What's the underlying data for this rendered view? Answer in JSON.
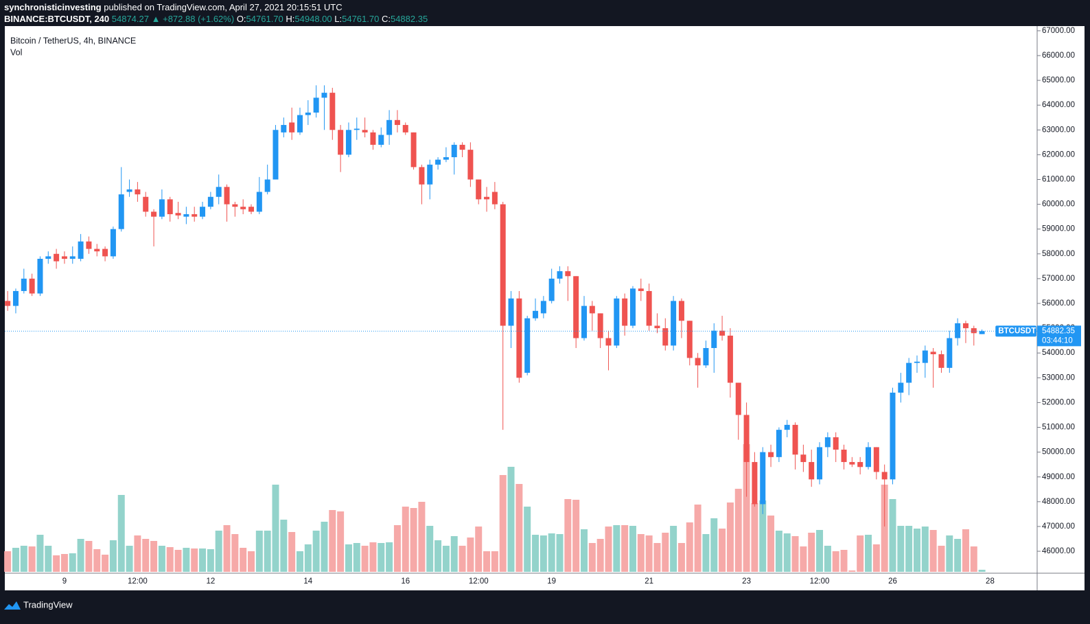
{
  "header": {
    "author": "synchronisticinvesting",
    "published": "published on TradingView.com, April 27, 2021 20:15:51 UTC",
    "symbol": "BINANCE:BTCUSDT, 240",
    "price": "54874.27",
    "change": "▲ +872.88 (+1.62%)",
    "o_label": "O:",
    "o": "54761.70",
    "h_label": "H:",
    "h": "54948.00",
    "l_label": "L:",
    "l": "54761.70",
    "c_label": "C:",
    "c": "54882.35"
  },
  "chart_data": {
    "type": "candlestick",
    "title": "Bitcoin / TetherUS, 4h, BINANCE",
    "volume_label": "Vol",
    "categories": [
      null,
      null,
      null,
      null,
      null,
      null,
      null,
      "9",
      null,
      null,
      null,
      null,
      null,
      null,
      null,
      null,
      "12:00",
      null,
      null,
      null,
      null,
      null,
      null,
      null,
      null,
      "12",
      null,
      null,
      null,
      null,
      null,
      null,
      null,
      null,
      null,
      null,
      null,
      "14",
      null,
      null,
      null,
      null,
      null,
      null,
      null,
      null,
      null,
      null,
      null,
      "16",
      null,
      null,
      null,
      null,
      null,
      null,
      null,
      null,
      "12:00",
      null,
      null,
      null,
      null,
      null,
      null,
      null,
      null,
      "19",
      null,
      null,
      null,
      null,
      null,
      null,
      null,
      null,
      null,
      null,
      null,
      "21",
      null,
      null,
      null,
      null,
      null,
      null,
      null,
      null,
      null,
      null,
      null,
      "23",
      null,
      null,
      null,
      null,
      null,
      null,
      null,
      null,
      "12:00",
      null,
      null,
      null,
      null,
      null,
      null,
      null,
      null,
      "26",
      null,
      null,
      null,
      null,
      null,
      null,
      null,
      null,
      null,
      null,
      null,
      "28"
    ],
    "open": [
      56100,
      55900,
      56500,
      57000,
      56400,
      57800,
      58000,
      57900,
      57800,
      57800,
      58500,
      58200,
      58200,
      57900,
      59000,
      60500,
      60600,
      60300,
      59700,
      59500,
      60200,
      59650,
      59500,
      59600,
      59500,
      59900,
      60300,
      60700,
      60000,
      59900,
      59900,
      59700,
      60500,
      61000,
      62900,
      63300,
      62900,
      63600,
      63700,
      64300,
      64500,
      63000,
      62000,
      63000,
      63000,
      62900,
      62400,
      62800,
      63400,
      63200,
      62900,
      61500,
      60800,
      61600,
      61800,
      61900,
      62400,
      62200,
      61000,
      60300,
      60500,
      60000,
      55100,
      56200,
      53200,
      55400,
      55600,
      56100,
      57000,
      57300,
      57100,
      54600,
      55900,
      55600,
      54600,
      54300,
      56200,
      55100,
      56600,
      56500,
      55100,
      55000,
      54300,
      56100,
      55300,
      53800,
      53500,
      54200,
      54900,
      54700,
      52800,
      51500,
      49600,
      47900,
      50000,
      49800,
      50900,
      51100,
      49900,
      49600,
      48900,
      50200,
      50600,
      50100,
      49600,
      49600,
      49400,
      50200,
      49200,
      48900,
      52400,
      52800,
      53600,
      53600,
      54050,
      53950,
      53400,
      54600,
      55200,
      55000,
      54761.7,
      null
    ],
    "high": [
      56500,
      56600,
      57400,
      57200,
      57900,
      58100,
      58200,
      58100,
      58300,
      58800,
      58700,
      58400,
      58300,
      59100,
      61500,
      61000,
      60900,
      60500,
      59800,
      60600,
      60300,
      60100,
      59900,
      59900,
      60100,
      60500,
      61200,
      60800,
      60100,
      60200,
      60000,
      61100,
      61600,
      63200,
      63500,
      63900,
      63900,
      64200,
      64800,
      64800,
      64700,
      63200,
      63300,
      63500,
      63500,
      63000,
      63100,
      63800,
      63800,
      63300,
      62900,
      61600,
      61800,
      61900,
      62300,
      62500,
      62500,
      62500,
      61000,
      60700,
      60900,
      60100,
      56500,
      56500,
      55500,
      56200,
      56300,
      57400,
      57500,
      57500,
      57100,
      56300,
      56100,
      55600,
      54900,
      56300,
      56400,
      56700,
      57000,
      56800,
      55600,
      55400,
      56300,
      56200,
      55300,
      54000,
      54500,
      55200,
      55500,
      55000,
      52800,
      52000,
      50000,
      50200,
      50300,
      51000,
      51300,
      51200,
      50300,
      50100,
      50400,
      50800,
      50800,
      50300,
      49800,
      49800,
      50400,
      50200,
      49500,
      52600,
      53200,
      53800,
      53900,
      54300,
      54200,
      54100,
      54900,
      55400,
      55300,
      55100,
      54948,
      null
    ],
    "low": [
      55700,
      55600,
      56400,
      56300,
      56300,
      57600,
      57400,
      57600,
      57600,
      57700,
      58000,
      57900,
      57700,
      57800,
      58900,
      60300,
      60100,
      59500,
      58300,
      59400,
      59300,
      59400,
      59200,
      59300,
      59400,
      59800,
      60000,
      59300,
      59500,
      59600,
      59600,
      59600,
      60400,
      61000,
      62700,
      62600,
      62800,
      63200,
      63500,
      63000,
      62600,
      61300,
      61900,
      62600,
      62700,
      62200,
      62300,
      62400,
      62900,
      62800,
      61400,
      60000,
      60200,
      61400,
      61700,
      61200,
      61900,
      60700,
      60000,
      59700,
      59800,
      50900,
      54200,
      52800,
      53100,
      55300,
      55400,
      56000,
      56800,
      56100,
      54200,
      54500,
      54900,
      54200,
      53300,
      54200,
      54700,
      55000,
      56100,
      54900,
      54800,
      54100,
      54100,
      54600,
      53500,
      52600,
      53400,
      53200,
      54500,
      52200,
      50500,
      48200,
      47800,
      47500,
      49400,
      49600,
      50600,
      49300,
      49200,
      48600,
      48700,
      49800,
      49600,
      49300,
      49400,
      49100,
      49300,
      48900,
      47000,
      48700,
      52000,
      52300,
      53200,
      53000,
      52600,
      53200,
      53200,
      54300,
      54400,
      54300,
      54761.7,
      null
    ],
    "close": [
      55900,
      56500,
      57000,
      56400,
      57800,
      57900,
      57700,
      57800,
      57900,
      58500,
      58200,
      58100,
      57900,
      59000,
      60400,
      60600,
      60400,
      59700,
      59500,
      60200,
      59600,
      59550,
      59600,
      59500,
      59900,
      60300,
      60700,
      60000,
      59900,
      59800,
      59700,
      60500,
      61000,
      63000,
      63200,
      62900,
      63600,
      63700,
      64300,
      64500,
      63000,
      62000,
      63000,
      63050,
      62900,
      62400,
      62800,
      63400,
      63200,
      62900,
      61500,
      60800,
      61600,
      61800,
      61900,
      62400,
      62200,
      61000,
      60200,
      60200,
      60000,
      55100,
      56200,
      53000,
      55400,
      55700,
      56100,
      57000,
      57300,
      57100,
      54600,
      55900,
      55600,
      54600,
      54300,
      56200,
      55100,
      56600,
      56500,
      55100,
      55000,
      54300,
      56100,
      55300,
      53800,
      53500,
      54200,
      54900,
      54700,
      52800,
      51500,
      49600,
      47900,
      50000,
      49800,
      50900,
      51100,
      49900,
      49600,
      48900,
      50200,
      50600,
      50100,
      49600,
      49500,
      49400,
      50200,
      49200,
      48900,
      52400,
      52800,
      53600,
      53650,
      54100,
      53950,
      53400,
      54600,
      55200,
      55000,
      54800,
      54882.35,
      null
    ],
    "volume": [
      30,
      35,
      38,
      37,
      54,
      38,
      24,
      26,
      27,
      48,
      45,
      33,
      25,
      46,
      112,
      38,
      53,
      48,
      45,
      38,
      36,
      32,
      35,
      34,
      34,
      33,
      60,
      68,
      55,
      35,
      30,
      60,
      60,
      127,
      76,
      58,
      30,
      40,
      60,
      73,
      90,
      88,
      40,
      42,
      38,
      43,
      42,
      43,
      68,
      95,
      93,
      102,
      67,
      46,
      38,
      52,
      38,
      50,
      66,
      30,
      30,
      141,
      153,
      128,
      95,
      54,
      53,
      56,
      55,
      106,
      105,
      62,
      42,
      48,
      66,
      68,
      68,
      67,
      55,
      53,
      42,
      57,
      67,
      42,
      72,
      98,
      55,
      78,
      63,
      101,
      121,
      186,
      100,
      104,
      82,
      60,
      56,
      52,
      37,
      57,
      61,
      38,
      30,
      32,
      2,
      53,
      54,
      40,
      127,
      106,
      67,
      67,
      63,
      66,
      61,
      38,
      53,
      48,
      62,
      37,
      3,
      null
    ],
    "up_color": "#2196f3",
    "down_color": "#ef5350",
    "volume_up_color": "#93d3cb",
    "volume_down_color": "#f6a9a8",
    "ylim": [
      45170,
      67190
    ],
    "yticks": [
      {
        "value": 46000,
        "label": "46000.00"
      },
      {
        "value": 47000,
        "label": "47000.00"
      },
      {
        "value": 48000,
        "label": "48000.00"
      },
      {
        "value": 49000,
        "label": "49000.00"
      },
      {
        "value": 50000,
        "label": "50000.00"
      },
      {
        "value": 51000,
        "label": "51000.00"
      },
      {
        "value": 52000,
        "label": "52000.00"
      },
      {
        "value": 53000,
        "label": "53000.00"
      },
      {
        "value": 54000,
        "label": "54000.00"
      },
      {
        "value": 55000,
        "label": "55000.00"
      },
      {
        "value": 56000,
        "label": "56000.00"
      },
      {
        "value": 57000,
        "label": "57000.00"
      },
      {
        "value": 58000,
        "label": "58000.00"
      },
      {
        "value": 59000,
        "label": "59000.00"
      },
      {
        "value": 60000,
        "label": "60000.00"
      },
      {
        "value": 61000,
        "label": "61000.00"
      },
      {
        "value": 62000,
        "label": "62000.00"
      },
      {
        "value": 63000,
        "label": "63000.00"
      },
      {
        "value": 64000,
        "label": "64000.00"
      },
      {
        "value": 65000,
        "label": "65000.00"
      },
      {
        "value": 66000,
        "label": "66000.00"
      },
      {
        "value": 67000,
        "label": "67000.00"
      }
    ],
    "price_label": {
      "symbol": "BTCUSDT",
      "price": "54882.35",
      "countdown": "03:44:10"
    }
  },
  "footer": {
    "brand": "TradingView"
  }
}
